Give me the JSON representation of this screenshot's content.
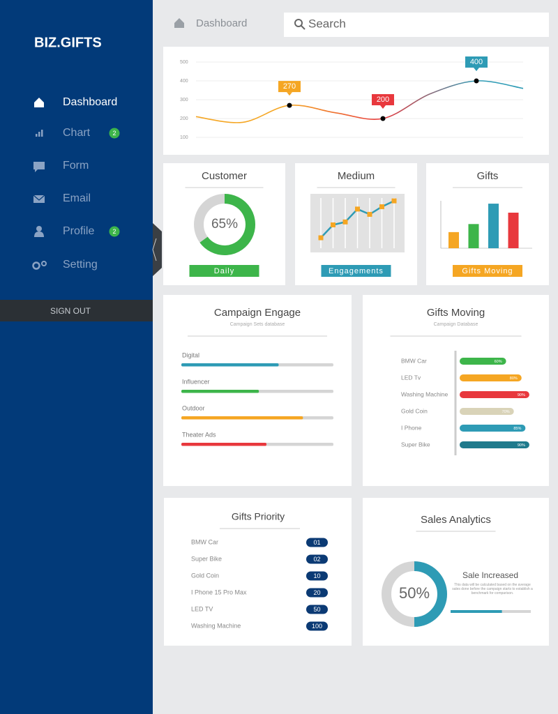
{
  "sidebar": {
    "logo": "BIZ.GIFTS",
    "nav": [
      {
        "label": "Dashboard",
        "active": true
      },
      {
        "label": "Chart",
        "badge": 2
      },
      {
        "label": "Form"
      },
      {
        "label": "Email"
      },
      {
        "label": "Profile",
        "badge": 2
      },
      {
        "label": "Setting"
      }
    ],
    "sign_out": "SIGN OUT"
  },
  "header": {
    "breadcrumb": "Dashboard",
    "search": "Search"
  },
  "chart_data": [
    {
      "type": "line",
      "smooth": true,
      "categories": [
        null,
        null,
        null,
        null,
        null,
        null,
        null,
        null
      ],
      "series": [
        {
          "values": [
            210,
            180,
            270,
            230,
            200,
            330,
            400,
            360
          ],
          "marker_colors": [
            null,
            null,
            "#f5a623",
            null,
            "#e8383d",
            null,
            "#2e9bb5",
            null
          ]
        }
      ],
      "ylim": [
        100,
        500
      ],
      "yticks": [
        100,
        200,
        300,
        400,
        500
      ],
      "grid": true
    },
    {
      "type": "donut",
      "title": "Customer",
      "values": [
        65
      ],
      "value_labels": [
        "65%"
      ],
      "color": "#3db54a",
      "footer": "Daily",
      "footer_color": "#3db54a"
    },
    {
      "type": "line",
      "title": "Medium",
      "categories": [
        null,
        null,
        null,
        null,
        null,
        null,
        null
      ],
      "values": [
        25,
        47,
        52,
        74,
        65,
        78,
        88
      ],
      "ylim": [
        0,
        100
      ],
      "color": "#2e9bb5",
      "marker_color": "#f5a623",
      "footer": "Engagements",
      "footer_color": "#2e9bb5"
    },
    {
      "type": "bar",
      "title": "Gifts",
      "categories": [
        null,
        null,
        null,
        null
      ],
      "values": [
        34,
        51,
        94,
        75
      ],
      "colors": [
        "#f5a623",
        "#3db54a",
        "#2e9bb5",
        "#e8383d"
      ],
      "ylim": [
        0,
        100
      ],
      "footer": "Gifts Moving",
      "footer_color": "#f5a623"
    },
    {
      "type": "hbar",
      "title": "Campaign Engage",
      "subtitle": "Campaign Sets database",
      "categories": [
        "Digital",
        "Influencer",
        "Outdoor",
        "Theater Ads"
      ],
      "values": [
        64,
        51,
        80,
        56
      ],
      "colors": [
        "#2e9bb5",
        "#3db54a",
        "#f5a623",
        "#e8383d"
      ],
      "xlim": [
        0,
        100
      ]
    },
    {
      "type": "hbar",
      "title": "Gifts Moving",
      "subtitle": "Campaign Database",
      "categories": [
        "BMW Car",
        "LED Tv",
        "Washing Machine",
        "Gold Coin",
        "I Phone",
        "Super Bike"
      ],
      "values": [
        60,
        80,
        90,
        70,
        85,
        90
      ],
      "value_labels": [
        "60%",
        "80%",
        "90%",
        "70%",
        "85%",
        "90%"
      ],
      "colors": [
        "#3db54a",
        "#f5a623",
        "#e8383d",
        "#d9d3b8",
        "#2e9bb5",
        "#1f7a8c"
      ],
      "xlim": [
        0,
        100
      ]
    },
    {
      "type": "donut",
      "title": "Sales Analytics",
      "values": [
        50
      ],
      "value_labels": [
        "50%"
      ],
      "color": "#2e9bb5",
      "heading": "Sale Increased",
      "text": "This data will be calculated based on the average sales done before the campaign starts to establish a benchmark for comparison.",
      "progress": 64
    }
  ],
  "table": {
    "title": "Gifts Priority",
    "rows": [
      [
        "BMW Car",
        "01"
      ],
      [
        "Super Bike",
        "02"
      ],
      [
        "Gold Coin",
        "10"
      ],
      [
        "I Phone 15 Pro Max",
        "20"
      ],
      [
        "LED TV",
        "50"
      ],
      [
        "Washing Machine",
        "100"
      ]
    ]
  }
}
